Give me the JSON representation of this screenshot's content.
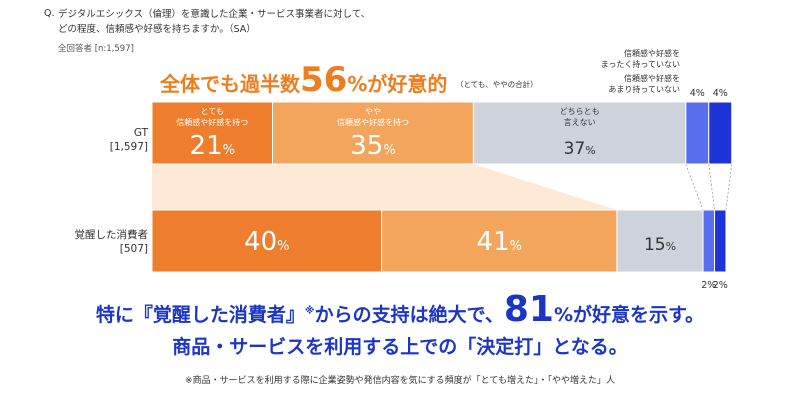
{
  "question": {
    "prefix": "Q.",
    "line1": "デジタルエシックス（倫理）を意識した企業・サービス事業者に対して、",
    "line2": "どの程度、信頼感や好感を持ちますか。（SA）",
    "respondents": "全回答者 [n:1,597]"
  },
  "highlight": {
    "pre": "全体でも過半数",
    "number": "56",
    "post": "%が好意的",
    "note": "（とても、ややの合計）"
  },
  "headline": {
    "part1": "特に『覚醒した消費者』",
    "mark": "※",
    "part2": "からの支持は絶大で、",
    "number": "81",
    "part3": "%が好意を示す。",
    "line2": "商品・サービスを利用する上での「決定打」となる。"
  },
  "footnote": "※商品・サービスを利用する際に企業姿勢や発信内容を気にする頻度が「とても増えた」・「やや増えた」人",
  "chart_data": {
    "type": "bar",
    "orientation": "horizontal",
    "stacked": true,
    "normalized": true,
    "categories": [
      "GT\n[1,597]",
      "覚醒した消費者\n[507]"
    ],
    "category_lines": [
      [
        "GT",
        "[1,597]"
      ],
      [
        "覚醒した消費者",
        "[507]"
      ]
    ],
    "series": [
      {
        "name": "とても信頼感や好感を持つ",
        "name_lines": [
          "とても",
          "信頼感や好感を持つ"
        ],
        "values": [
          21,
          40
        ],
        "labels": [
          "21%",
          "40%"
        ],
        "color": "#ee7d2e"
      },
      {
        "name": "やや信頼感や好感を持つ",
        "name_lines": [
          "やや",
          "信頼感や好感を持つ"
        ],
        "values": [
          35,
          41
        ],
        "labels": [
          "35%",
          "41%"
        ],
        "color": "#f4a55c"
      },
      {
        "name": "どちらとも言えない",
        "name_lines": [
          "どちらとも",
          "言えない"
        ],
        "values": [
          37,
          15
        ],
        "labels": [
          "37%",
          "15%"
        ],
        "color": "#ced2da"
      },
      {
        "name": "信頼感や好感をあまり持っていない",
        "name_lines": [
          "信頼感や好感を",
          "あまり持っていない"
        ],
        "values": [
          4,
          2
        ],
        "labels": [
          "4%",
          "2%"
        ],
        "color": "#5a6ef0"
      },
      {
        "name": "信頼感や好感をまったく持っていない",
        "name_lines": [
          "信頼感や好感を",
          "まったく持っていない"
        ],
        "values": [
          4,
          2
        ],
        "labels": [
          "4%",
          "2%"
        ],
        "color": "#1e34d8"
      }
    ]
  }
}
